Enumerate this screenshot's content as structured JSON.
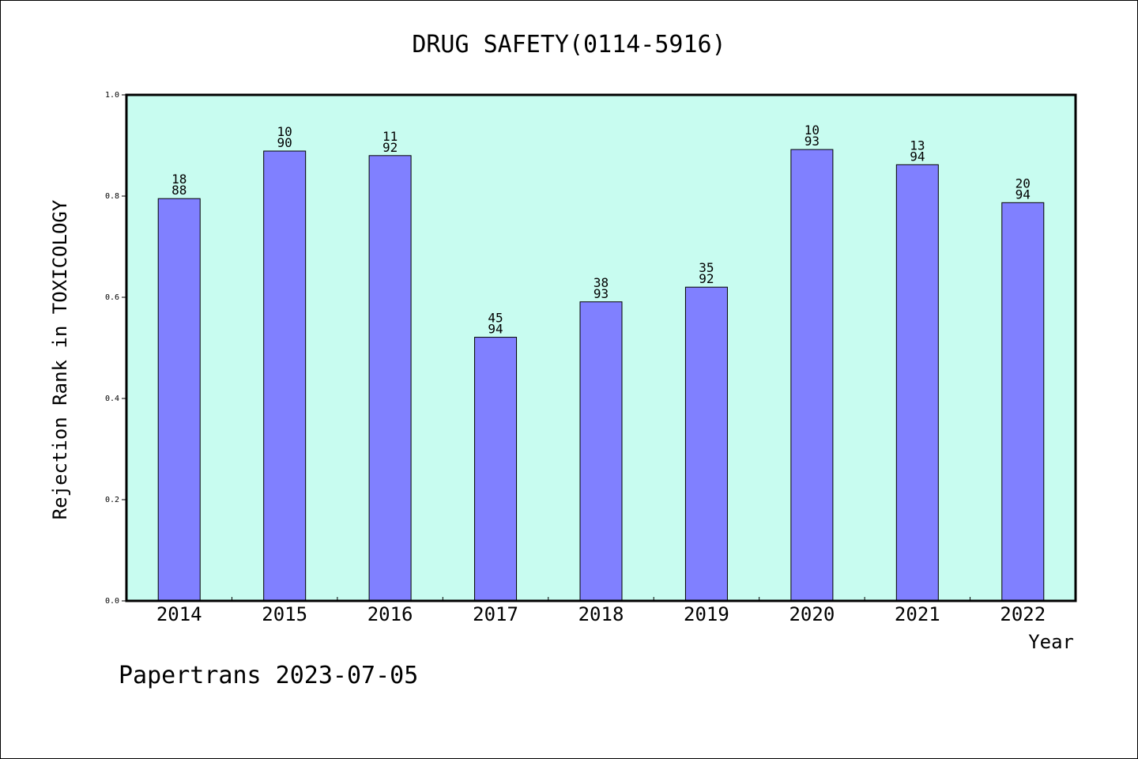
{
  "chart_data": {
    "type": "bar",
    "title": "DRUG SAFETY(0114-5916)",
    "xlabel": "Year",
    "ylabel": "Rejection Rank in TOXICOLOGY",
    "ylim": [
      0,
      1.0
    ],
    "yticks": [
      "0.0",
      "0.2",
      "0.4",
      "0.6",
      "0.8",
      "1.0"
    ],
    "categories": [
      "2014",
      "2015",
      "2016",
      "2017",
      "2018",
      "2019",
      "2020",
      "2021",
      "2022"
    ],
    "values": [
      0.795,
      0.889,
      0.88,
      0.521,
      0.591,
      0.62,
      0.892,
      0.862,
      0.787
    ],
    "labels": [
      {
        "top": "18",
        "bottom": "88"
      },
      {
        "top": "10",
        "bottom": "90"
      },
      {
        "top": "11",
        "bottom": "92"
      },
      {
        "top": "45",
        "bottom": "94"
      },
      {
        "top": "38",
        "bottom": "93"
      },
      {
        "top": "35",
        "bottom": "92"
      },
      {
        "top": "10",
        "bottom": "93"
      },
      {
        "top": "13",
        "bottom": "94"
      },
      {
        "top": "20",
        "bottom": "94"
      }
    ],
    "grid": false,
    "colors": {
      "bar": "#8080ff",
      "plot_bg": "#c8fcf0"
    }
  },
  "footer": "Papertrans 2023-07-05"
}
